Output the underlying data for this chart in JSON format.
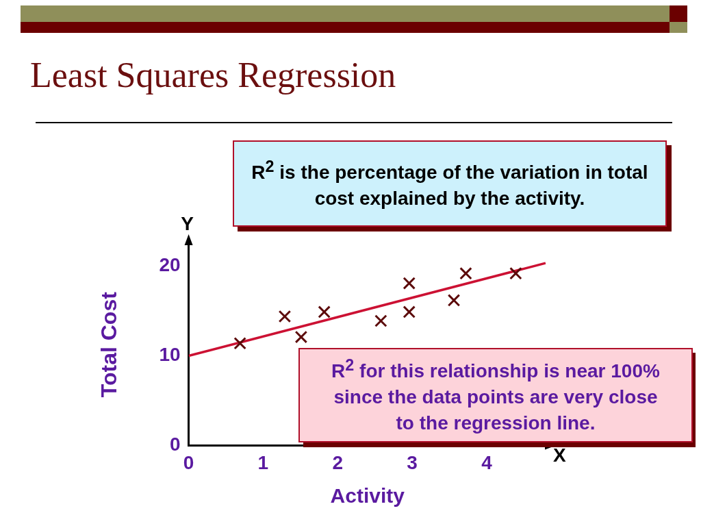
{
  "chart_data": {
    "type": "scatter",
    "title": "Least Squares Regression",
    "xlabel": "Activity",
    "ylabel": "Total Cost",
    "annotations": [
      "R$^{2}$  is the percentage  of the variation in total cost explained by the activity.",
      "R$^{2}$ for this relationship is near 100% since the data points are very close to the regression line.",
      "Y",
      "X"
    ],
    "series": [
      {
        "type": "scatter",
        "color": "#5c0a0a",
        "marker": "cross",
        "x": [
          0.69,
          1.29,
          1.51,
          1.82,
          2.58,
          2.96,
          2.96,
          3.56,
          3.72,
          4.39
        ],
        "values": [
          11.4,
          14.4,
          12.1,
          14.9,
          13.9,
          18.1,
          14.9,
          16.2,
          19.2,
          19.2
        ]
      },
      {
        "type": "line",
        "color": "#cc1133",
        "marker": "none",
        "x": [
          0,
          4.79
        ],
        "values": [
          10,
          20.35
        ]
      }
    ],
    "xlim": [
      0,
      4.8
    ],
    "ylim": [
      0,
      22.5
    ],
    "xticks": [
      0,
      1,
      2,
      3,
      4
    ],
    "yticks": [
      0,
      10,
      20
    ]
  }
}
